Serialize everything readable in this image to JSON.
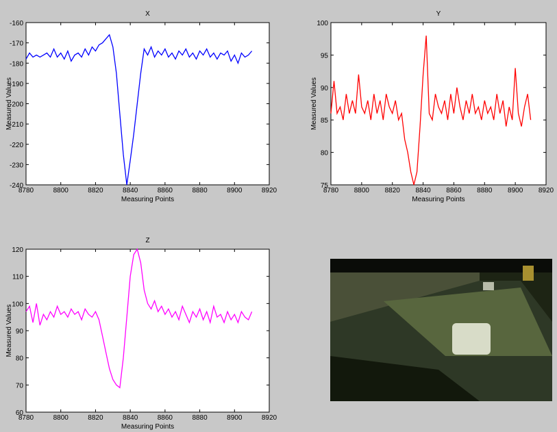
{
  "chart_data": [
    {
      "type": "line",
      "title": "X",
      "xlabel": "Measuring Points",
      "ylabel": "Measured Values",
      "xlim": [
        8780,
        8920
      ],
      "xticks": [
        8780,
        8800,
        8820,
        8840,
        8860,
        8880,
        8900,
        8920
      ],
      "ylim": [
        -240,
        -160
      ],
      "yticks": [
        -240,
        -230,
        -220,
        -210,
        -200,
        -190,
        -180,
        -170,
        -160
      ],
      "x": [
        8780,
        8782,
        8784,
        8786,
        8788,
        8790,
        8792,
        8794,
        8796,
        8798,
        8800,
        8802,
        8804,
        8806,
        8808,
        8810,
        8812,
        8814,
        8816,
        8818,
        8820,
        8822,
        8824,
        8826,
        8828,
        8830,
        8832,
        8834,
        8836,
        8838,
        8840,
        8842,
        8844,
        8846,
        8848,
        8850,
        8852,
        8854,
        8856,
        8858,
        8860,
        8862,
        8864,
        8866,
        8868,
        8870,
        8872,
        8874,
        8876,
        8878,
        8880,
        8882,
        8884,
        8886,
        8888,
        8890,
        8892,
        8894,
        8896,
        8898,
        8900,
        8902,
        8904,
        8906,
        8908,
        8910
      ],
      "series": [
        {
          "color": "#0000ff",
          "values": [
            -178,
            -175,
            -177,
            -176,
            -177,
            -176,
            -175,
            -177,
            -173,
            -177,
            -175,
            -178,
            -174,
            -179,
            -176,
            -175,
            -177,
            -173,
            -176,
            -172,
            -174,
            -171,
            -170,
            -168,
            -166,
            -172,
            -185,
            -205,
            -225,
            -240,
            -228,
            -215,
            -200,
            -185,
            -173,
            -176,
            -172,
            -177,
            -174,
            -176,
            -173,
            -177,
            -175,
            -178,
            -174,
            -176,
            -173,
            -177,
            -175,
            -178,
            -174,
            -176,
            -173,
            -177,
            -175,
            -178,
            -175,
            -176,
            -174,
            -179,
            -176,
            -180,
            -175,
            -177,
            -176,
            -174
          ]
        }
      ]
    },
    {
      "type": "line",
      "title": "Y",
      "xlabel": "Measuring Points",
      "ylabel": "Measured Values",
      "xlim": [
        8780,
        8920
      ],
      "xticks": [
        8780,
        8800,
        8820,
        8840,
        8860,
        8880,
        8900,
        8920
      ],
      "ylim": [
        75,
        100
      ],
      "yticks": [
        75,
        80,
        85,
        90,
        95,
        100
      ],
      "x": [
        8780,
        8782,
        8784,
        8786,
        8788,
        8790,
        8792,
        8794,
        8796,
        8798,
        8800,
        8802,
        8804,
        8806,
        8808,
        8810,
        8812,
        8814,
        8816,
        8818,
        8820,
        8822,
        8824,
        8826,
        8828,
        8830,
        8832,
        8834,
        8836,
        8838,
        8840,
        8842,
        8844,
        8846,
        8848,
        8850,
        8852,
        8854,
        8856,
        8858,
        8860,
        8862,
        8864,
        8866,
        8868,
        8870,
        8872,
        8874,
        8876,
        8878,
        8880,
        8882,
        8884,
        8886,
        8888,
        8890,
        8892,
        8894,
        8896,
        8898,
        8900,
        8902,
        8904,
        8906,
        8908,
        8910
      ],
      "series": [
        {
          "color": "#ff0000",
          "values": [
            86,
            91,
            86,
            87,
            85,
            89,
            86,
            88,
            86,
            92,
            87,
            86,
            88,
            85,
            89,
            86,
            88,
            85,
            89,
            87,
            86,
            88,
            85,
            86,
            82,
            80,
            77,
            75,
            77,
            84,
            92,
            98,
            86,
            85,
            89,
            87,
            86,
            88,
            85,
            89,
            86,
            90,
            87,
            85,
            88,
            86,
            89,
            86,
            87,
            85,
            88,
            86,
            87,
            85,
            89,
            86,
            88,
            84,
            87,
            85,
            93,
            86,
            84,
            87,
            89,
            85
          ]
        }
      ]
    },
    {
      "type": "line",
      "title": "Z",
      "xlabel": "Measuring Points",
      "ylabel": "Measured Values",
      "xlim": [
        8780,
        8920
      ],
      "xticks": [
        8780,
        8800,
        8820,
        8840,
        8860,
        8880,
        8900,
        8920
      ],
      "ylim": [
        60,
        120
      ],
      "yticks": [
        60,
        70,
        80,
        90,
        100,
        110,
        120
      ],
      "x": [
        8780,
        8782,
        8784,
        8786,
        8788,
        8790,
        8792,
        8794,
        8796,
        8798,
        8800,
        8802,
        8804,
        8806,
        8808,
        8810,
        8812,
        8814,
        8816,
        8818,
        8820,
        8822,
        8824,
        8826,
        8828,
        8830,
        8832,
        8834,
        8836,
        8838,
        8840,
        8842,
        8844,
        8846,
        8848,
        8850,
        8852,
        8854,
        8856,
        8858,
        8860,
        8862,
        8864,
        8866,
        8868,
        8870,
        8872,
        8874,
        8876,
        8878,
        8880,
        8882,
        8884,
        8886,
        8888,
        8890,
        8892,
        8894,
        8896,
        8898,
        8900,
        8902,
        8904,
        8906,
        8908,
        8910
      ],
      "series": [
        {
          "color": "#ff00ff",
          "values": [
            97,
            99,
            93,
            100,
            92,
            96,
            94,
            97,
            95,
            99,
            96,
            97,
            95,
            98,
            96,
            97,
            94,
            98,
            96,
            95,
            97,
            94,
            88,
            82,
            76,
            72,
            70,
            69,
            80,
            95,
            110,
            118,
            120,
            115,
            105,
            100,
            98,
            101,
            97,
            99,
            96,
            98,
            95,
            97,
            94,
            99,
            96,
            93,
            97,
            95,
            98,
            94,
            97,
            93,
            99,
            95,
            96,
            93,
            97,
            94,
            96,
            93,
            97,
            95,
            94,
            97
          ]
        }
      ]
    }
  ]
}
